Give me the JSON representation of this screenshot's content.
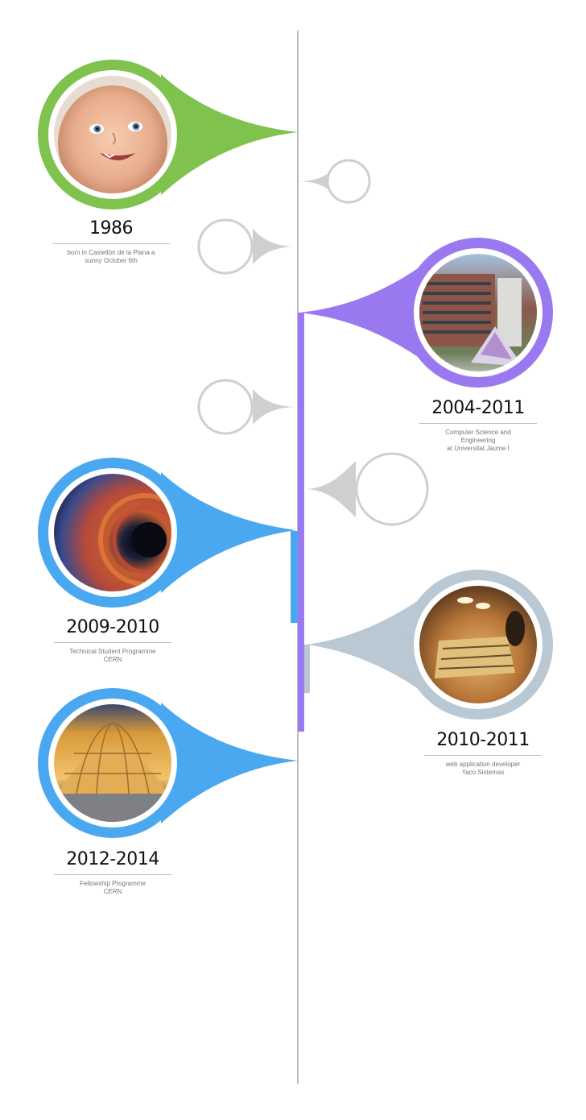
{
  "colors": {
    "axis": "#9a9a9a",
    "green": "#7fc34e",
    "purple": "#9a79f0",
    "blue": "#4aa8f0",
    "grey_blue": "#b9c8d2",
    "placeholder": "#cfcfcf"
  },
  "events": [
    {
      "id": "birth",
      "year": "1986",
      "desc": [
        "born in Castellón de la Plana a",
        "sunny October 6th"
      ],
      "photo": "baby-photo"
    },
    {
      "id": "uji",
      "year": "2004-2011",
      "desc": [
        "Computer Science and",
        "Engineering",
        "at Universitat Jaume I"
      ],
      "photo": "university-building-photo"
    },
    {
      "id": "cern-student",
      "year": "2009-2010",
      "desc": [
        "Technical Student Programme",
        "CERN"
      ],
      "photo": "particle-detector-photo"
    },
    {
      "id": "yaco",
      "year": "2010-2011",
      "desc": [
        "web application developer",
        "Yaco Sistemas"
      ],
      "photo": "foosball-office-photo"
    },
    {
      "id": "cern-fellow",
      "year": "2012-2014",
      "desc": [
        "Fellowship Programme",
        "CERN"
      ],
      "photo": "globe-of-science-photo"
    }
  ]
}
